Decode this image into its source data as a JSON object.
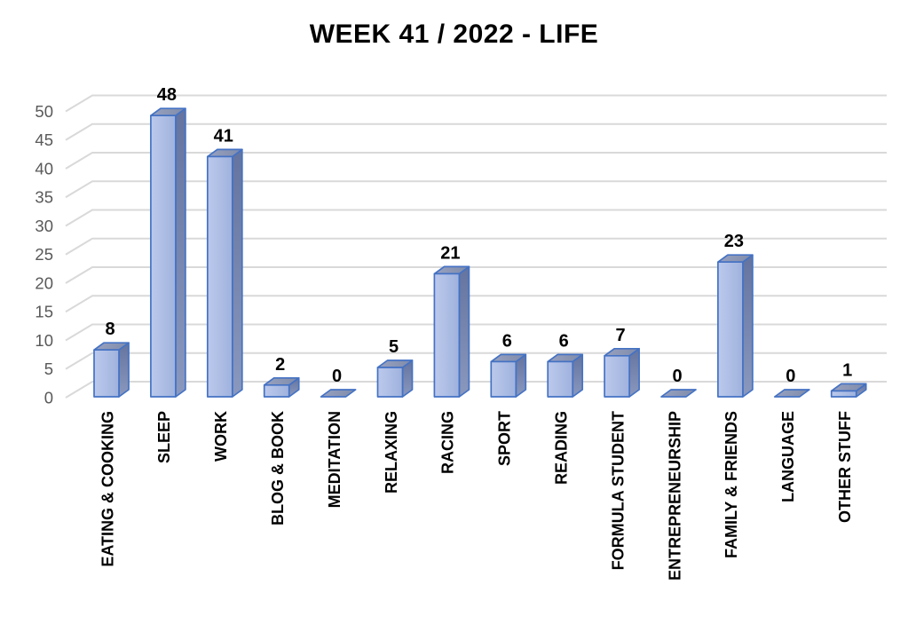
{
  "title": "WEEK 41 / 2022 - LIFE",
  "chart_data": {
    "type": "bar",
    "style": "3d-column",
    "title": "WEEK 41 / 2022 - LIFE",
    "xlabel": "",
    "ylabel": "",
    "categories": [
      "EATING & COOKING",
      "SLEEP",
      "WORK",
      "BLOG & BOOK",
      "MEDITATION",
      "RELAXING",
      "RACING",
      "SPORT",
      "READING",
      "FORMULA STUDENT",
      "ENTREPRENEURSHIP",
      "FAMILY & FRIENDS",
      "LANGUAGE",
      "OTHER STUFF"
    ],
    "values": [
      8,
      48,
      41,
      2,
      0,
      5,
      21,
      6,
      6,
      7,
      0,
      23,
      0,
      1
    ],
    "ylim": [
      0,
      50
    ],
    "yticks": [
      0,
      5,
      10,
      15,
      20,
      25,
      30,
      35,
      40,
      45,
      50
    ],
    "grid": true,
    "legend": false,
    "data_labels": true,
    "colors": {
      "bar_front_light": "#BCC9EC",
      "bar_front_dark": "#9FB2DD",
      "bar_side_dark": "#64749F",
      "bar_side_light": "#8A98BE",
      "bar_top_light": "#98A2C0",
      "bar_top_dark": "#7F8BAA",
      "bar_outline": "#4472C4",
      "gridline": "#D9D9D9",
      "tick_label": "#595959",
      "category_label": "#000000",
      "value_label": "#000000",
      "title_color": "#000000",
      "background": "#FFFFFF"
    }
  }
}
